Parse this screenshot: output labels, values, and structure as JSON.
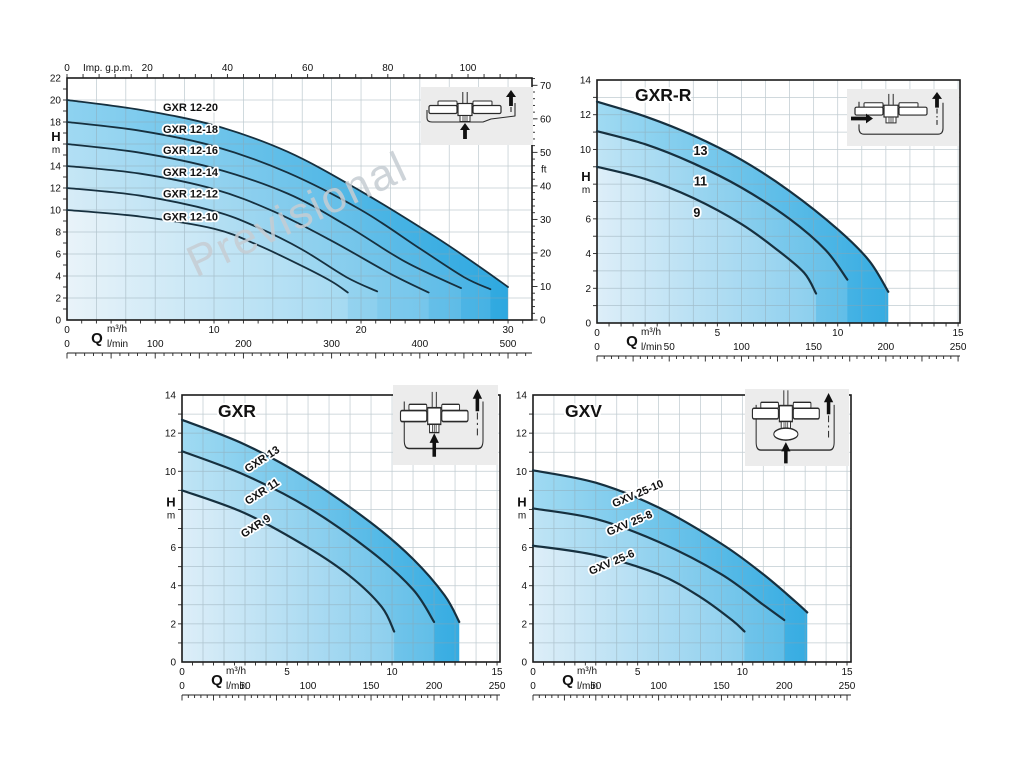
{
  "watermark": "Previsional",
  "chart_data": [
    {
      "type": "line",
      "title": "",
      "y_axis": {
        "label": "H",
        "unit": "m",
        "ticks": [
          22,
          20,
          18,
          14,
          12,
          10,
          8,
          6,
          4,
          2,
          0
        ],
        "h_label_at": 16,
        "ylim": [
          0,
          22
        ]
      },
      "y2_axis": {
        "unit": "ft",
        "ticks": [
          70,
          60,
          50,
          40,
          30,
          20,
          10,
          0
        ]
      },
      "x_top_axis": {
        "label": "Imp. g.p.m.",
        "ticks": [
          0,
          20,
          40,
          60,
          80,
          100
        ]
      },
      "x_axis": {
        "label": "Q",
        "unit1": "m³/h",
        "ticks1": [
          0,
          10,
          20,
          30
        ],
        "unit2": "l/min",
        "ticks2": [
          0,
          100,
          200,
          300,
          400,
          500
        ],
        "xlim": [
          0,
          30
        ]
      },
      "grid": true,
      "icon": "surface-pump-installation-icon",
      "series": [
        {
          "name": "GXR 12-20",
          "label_at": [
            8.4,
            19.35
          ],
          "points": [
            [
              0,
              20
            ],
            [
              5,
              19.1
            ],
            [
              10,
              17.7
            ],
            [
              15,
              15.3
            ],
            [
              20,
              11.7
            ],
            [
              25,
              7.6
            ],
            [
              28,
              4.9
            ],
            [
              30,
              3.0
            ]
          ]
        },
        {
          "name": "GXR 12-18",
          "label_at": [
            8.4,
            17.35
          ],
          "points": [
            [
              0,
              18
            ],
            [
              5,
              17.2
            ],
            [
              10,
              15.8
            ],
            [
              15,
              13.4
            ],
            [
              20,
              10.0
            ],
            [
              24,
              6.5
            ],
            [
              27,
              3.9
            ],
            [
              28.8,
              2.8
            ]
          ]
        },
        {
          "name": "GXR 12-16",
          "label_at": [
            8.4,
            15.45
          ],
          "points": [
            [
              0,
              16
            ],
            [
              5,
              15.2
            ],
            [
              10,
              13.8
            ],
            [
              15,
              11.5
            ],
            [
              19,
              8.6
            ],
            [
              23,
              5.3
            ],
            [
              26.8,
              2.9
            ]
          ]
        },
        {
          "name": "GXR 12-14",
          "label_at": [
            8.4,
            13.45
          ],
          "points": [
            [
              0,
              14
            ],
            [
              5,
              13.3
            ],
            [
              10,
              11.9
            ],
            [
              14,
              9.9
            ],
            [
              18,
              7.2
            ],
            [
              22,
              4.2
            ],
            [
              24.6,
              2.5
            ]
          ]
        },
        {
          "name": "GXR 12-12",
          "label_at": [
            8.4,
            11.5
          ],
          "points": [
            [
              0,
              12
            ],
            [
              5,
              11.3
            ],
            [
              10,
              9.9
            ],
            [
              13,
              8.4
            ],
            [
              16,
              6.4
            ],
            [
              19,
              3.9
            ],
            [
              21.1,
              2.6
            ]
          ]
        },
        {
          "name": "GXR 12-10",
          "label_at": [
            8.4,
            9.4
          ],
          "points": [
            [
              0,
              10
            ],
            [
              5,
              9.4
            ],
            [
              10,
              8.3
            ],
            [
              13,
              6.8
            ],
            [
              16,
              4.9
            ],
            [
              18,
              3.5
            ],
            [
              19.1,
              2.5
            ]
          ]
        }
      ]
    },
    {
      "type": "line",
      "title": "GXR-R",
      "y_axis": {
        "label": "H",
        "unit": "m",
        "ticks": [
          14,
          12,
          10,
          6,
          4,
          2,
          0
        ],
        "h_label_at": 8,
        "ylim": [
          0,
          14
        ]
      },
      "x_axis": {
        "label": "Q",
        "unit1": "m³/h",
        "ticks1": [
          0,
          5,
          10,
          15
        ],
        "unit2": "l/min",
        "ticks2": [
          0,
          50,
          100,
          150,
          200,
          250
        ],
        "xlim": [
          0,
          15
        ]
      },
      "grid": true,
      "icon": "sump-pump-side-inlet-icon",
      "series": [
        {
          "name": "13",
          "label_at": [
            4.3,
            9.9
          ],
          "points": [
            [
              0,
              12.75
            ],
            [
              2,
              11.9
            ],
            [
              4,
              10.8
            ],
            [
              6,
              9.4
            ],
            [
              8,
              7.6
            ],
            [
              10,
              5.4
            ],
            [
              11.3,
              3.6
            ],
            [
              12.1,
              1.8
            ]
          ]
        },
        {
          "name": "11",
          "label_at": [
            4.3,
            8.15
          ],
          "points": [
            [
              0,
              11.05
            ],
            [
              2,
              10.3
            ],
            [
              4,
              9.2
            ],
            [
              6,
              7.8
            ],
            [
              8,
              6.0
            ],
            [
              9.5,
              4.2
            ],
            [
              10.4,
              2.5
            ]
          ]
        },
        {
          "name": "9",
          "label_at": [
            4.15,
            6.35
          ],
          "points": [
            [
              0,
              9.0
            ],
            [
              2,
              8.3
            ],
            [
              4,
              7.2
            ],
            [
              6,
              5.7
            ],
            [
              7.5,
              4.2
            ],
            [
              8.6,
              2.9
            ],
            [
              9.1,
              1.7
            ]
          ]
        }
      ]
    },
    {
      "type": "line",
      "title": "GXR",
      "y_axis": {
        "label": "H",
        "unit": "m",
        "ticks": [
          14,
          12,
          10,
          6,
          4,
          2,
          0
        ],
        "h_label_at": 8,
        "ylim": [
          0,
          14
        ]
      },
      "x_axis": {
        "label": "Q",
        "unit1": "m³/h",
        "ticks1": [
          0,
          5,
          10,
          15
        ],
        "unit2": "l/min",
        "ticks2": [
          0,
          50,
          100,
          150,
          200,
          250
        ],
        "xlim": [
          0,
          15
        ]
      },
      "grid": true,
      "icon": "sump-pump-bottom-inlet-icon",
      "series": [
        {
          "name": "GXR 13",
          "label_at": [
            3.8,
            10.65
          ],
          "points": [
            [
              0,
              12.7
            ],
            [
              3,
              11.4
            ],
            [
              6,
              9.6
            ],
            [
              9,
              7.3
            ],
            [
              11,
              5.4
            ],
            [
              12.5,
              3.5
            ],
            [
              13.2,
              2.1
            ]
          ]
        },
        {
          "name": "GXR 11",
          "label_at": [
            3.8,
            8.95
          ],
          "points": [
            [
              0,
              11.05
            ],
            [
              3,
              9.8
            ],
            [
              6,
              8.1
            ],
            [
              9,
              5.8
            ],
            [
              11,
              3.8
            ],
            [
              12,
              2.1
            ]
          ]
        },
        {
          "name": "GXR 9",
          "label_at": [
            3.5,
            7.15
          ],
          "points": [
            [
              0,
              9.0
            ],
            [
              3,
              7.8
            ],
            [
              6,
              6.0
            ],
            [
              8,
              4.5
            ],
            [
              9.5,
              2.9
            ],
            [
              10.1,
              1.6
            ]
          ]
        }
      ]
    },
    {
      "type": "line",
      "title": "GXV",
      "y_axis": {
        "label": "H",
        "unit": "m",
        "ticks": [
          14,
          12,
          10,
          6,
          4,
          2,
          0
        ],
        "h_label_at": 8,
        "ylim": [
          0,
          14
        ]
      },
      "x_axis": {
        "label": "Q",
        "unit1": "m³/h",
        "ticks1": [
          0,
          5,
          10,
          15
        ],
        "unit2": "l/min",
        "ticks2": [
          0,
          50,
          100,
          150,
          200,
          250
        ],
        "xlim": [
          0,
          15
        ]
      },
      "grid": true,
      "icon": "sump-pump-vertical-suction-icon",
      "series": [
        {
          "name": "GXV 25-10",
          "label_at": [
            5.0,
            8.85
          ],
          "points": [
            [
              0,
              10.05
            ],
            [
              3,
              9.4
            ],
            [
              6,
              8.1
            ],
            [
              9,
              6.2
            ],
            [
              11,
              4.6
            ],
            [
              12.5,
              3.2
            ],
            [
              13.1,
              2.6
            ]
          ]
        },
        {
          "name": "GXV 25-8",
          "label_at": [
            4.6,
            7.3
          ],
          "points": [
            [
              0,
              8.05
            ],
            [
              3,
              7.5
            ],
            [
              6,
              6.3
            ],
            [
              9,
              4.6
            ],
            [
              11,
              3.0
            ],
            [
              12,
              2.2
            ]
          ]
        },
        {
          "name": "GXV 25-6",
          "label_at": [
            3.75,
            5.25
          ],
          "points": [
            [
              0,
              6.1
            ],
            [
              3,
              5.6
            ],
            [
              6,
              4.6
            ],
            [
              8,
              3.4
            ],
            [
              9.5,
              2.2
            ],
            [
              10.1,
              1.6
            ]
          ]
        }
      ]
    }
  ]
}
